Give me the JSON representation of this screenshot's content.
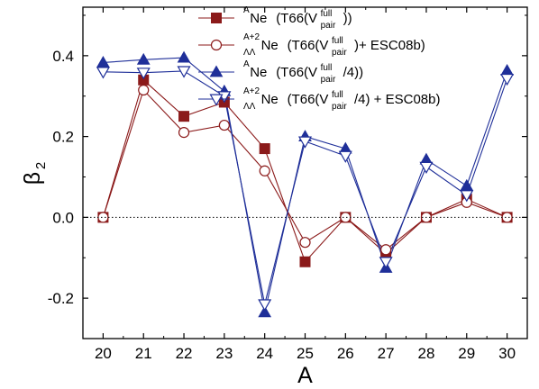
{
  "chart_data": {
    "type": "line",
    "xlabel": "A",
    "ylabel": "β",
    "ylabel_sub": "2",
    "xlim": [
      19.5,
      30.5
    ],
    "ylim": [
      -0.3,
      0.52
    ],
    "x_ticks": [
      20,
      21,
      22,
      23,
      24,
      25,
      26,
      27,
      28,
      29,
      30
    ],
    "y_ticks": [
      -0.2,
      0.0,
      0.2,
      0.4
    ],
    "y_tick_labels": [
      "-0.2",
      "0.0",
      "0.2",
      "0.4"
    ],
    "reference_line": {
      "y": 0.0,
      "style": "dotted"
    },
    "grid": false,
    "legend_position": "top-center",
    "x": [
      20,
      21,
      22,
      23,
      24,
      25,
      26,
      27,
      28,
      29,
      30
    ],
    "series": [
      {
        "color": "#8b1a1a",
        "marker": "square-filled",
        "legend": {
          "pre_sup": "A",
          "pre_sub": "",
          "nucleus": "Ne",
          "desc": "(T66(V",
          "sup": "full",
          "sub": "pair",
          "tail": "))"
        },
        "values": [
          0.0,
          0.34,
          0.25,
          0.285,
          0.17,
          -0.11,
          0.0,
          -0.09,
          0.0,
          0.045,
          0.0
        ]
      },
      {
        "color": "#8b1a1a",
        "marker": "circle-open",
        "legend": {
          "pre_sup": "A+2",
          "pre_sub": "ΛΛ",
          "nucleus": "Ne",
          "desc": "(T66(V",
          "sup": "full",
          "sub": "pair",
          "tail": ")+ ESC08b)"
        },
        "values": [
          0.0,
          0.315,
          0.21,
          0.228,
          0.115,
          -0.062,
          0.0,
          -0.08,
          0.0,
          0.037,
          0.0
        ]
      },
      {
        "color": "#1f2f99",
        "marker": "triangle-up-filled",
        "legend": {
          "pre_sup": "A",
          "pre_sub": "",
          "nucleus": "Ne",
          "desc": "(T66(V",
          "sup": "full",
          "sub": "pair",
          "tail": "/4))"
        },
        "values": [
          0.383,
          0.39,
          0.395,
          0.312,
          -0.235,
          0.2,
          0.17,
          -0.125,
          0.143,
          0.078,
          0.363
        ]
      },
      {
        "color": "#1f2f99",
        "marker": "triangle-down-open",
        "legend": {
          "pre_sup": "A+2",
          "pre_sub": "ΛΛ",
          "nucleus": "Ne",
          "desc": "(T66(V",
          "sup": "full",
          "sub": "pair",
          "tail": "/4) + ESC08b)"
        },
        "values": [
          0.36,
          0.358,
          0.362,
          0.3,
          -0.215,
          0.188,
          0.152,
          -0.11,
          0.125,
          0.055,
          0.343
        ]
      }
    ]
  }
}
